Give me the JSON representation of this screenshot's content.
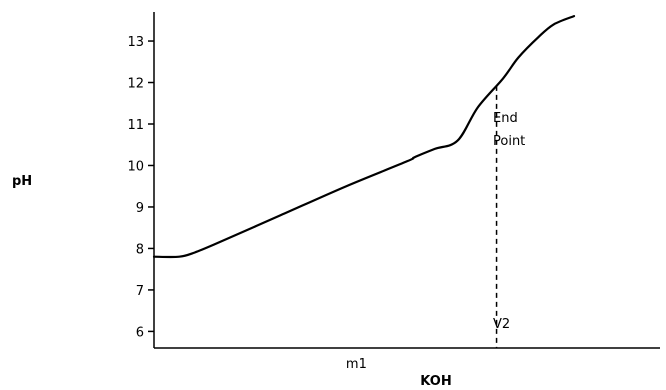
{
  "chart_data": {
    "type": "line",
    "title": "",
    "xlabel": "KOH",
    "ylabel": "pH",
    "ylim": [
      5.6,
      13.7
    ],
    "y_ticks": [
      6,
      7,
      8,
      9,
      10,
      11,
      12,
      13
    ],
    "grid": false,
    "legend": "none",
    "series": [
      {
        "color": "#000000",
        "points": [
          [
            0.0,
            7.8
          ],
          [
            0.05,
            7.8
          ],
          [
            0.08,
            7.9
          ],
          [
            0.12,
            8.1
          ],
          [
            0.25,
            8.8
          ],
          [
            0.38,
            9.5
          ],
          [
            0.5,
            10.1
          ],
          [
            0.515,
            10.2
          ],
          [
            0.555,
            10.4
          ],
          [
            0.6,
            10.6
          ],
          [
            0.64,
            11.4
          ],
          [
            0.69,
            12.1
          ],
          [
            0.72,
            12.6
          ],
          [
            0.76,
            13.1
          ],
          [
            0.79,
            13.4
          ],
          [
            0.83,
            13.6
          ]
        ]
      }
    ],
    "x_tick_text": "m1",
    "x_tick_value": 0.4,
    "endpoint_x": 0.677,
    "annotations": {
      "endpoint_line1": "End",
      "endpoint_line2": "Point",
      "v2": "V2"
    }
  },
  "colors": {
    "line": "#000000",
    "background": "#ffffff"
  }
}
